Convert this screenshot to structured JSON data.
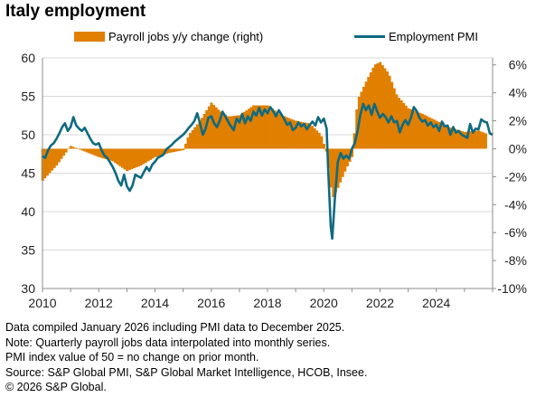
{
  "title": "Italy employment",
  "colors": {
    "bars": "#e07f00",
    "line": "#0e6a80",
    "axis": "#8c8c8c",
    "grid": "#d9d9d9"
  },
  "footnotes": [
    "Data compiled January 2026 including PMI data to December 2025.",
    "Note: Quarterly payroll jobs data interpolated into monthly series.",
    "PMI index value of 50 = no change on prior month.",
    "Source: S&P Global PMI, S&P Global Market Intelligence, HCOB, Insee.",
    "© 2026 S&P Global."
  ],
  "chart_data": {
    "type": "line+bar",
    "title": "Italy employment",
    "legend": [
      "Payroll jobs y/y change (right)",
      "Employment PMI"
    ],
    "x_range": [
      2010.0,
      2026.0
    ],
    "x_ticks": [
      2010,
      2012,
      2014,
      2016,
      2018,
      2020,
      2022,
      2024
    ],
    "x_tick_labels": [
      "2010",
      "2012",
      "2014",
      "2016",
      "2018",
      "2020",
      "2022",
      "2024"
    ],
    "left_axis": {
      "range": [
        30,
        60
      ],
      "ticks": [
        30,
        35,
        40,
        45,
        50,
        55,
        60
      ],
      "tick_labels": [
        "30",
        "35",
        "40",
        "45",
        "50",
        "55",
        "60"
      ]
    },
    "right_axis": {
      "range": [
        -10,
        6.5
      ],
      "ticks": [
        -10,
        -8,
        -6,
        -4,
        -2,
        0,
        2,
        4,
        6
      ],
      "tick_labels": [
        "-10%",
        "-8%",
        "-6%",
        "-4%",
        "-2%",
        "0%",
        "2%",
        "4%",
        "6%"
      ]
    },
    "series": [
      {
        "name": "Payroll jobs y/y change (right)",
        "type": "bar",
        "axis": "right",
        "unit": "%",
        "points": [
          [
            2010.0,
            -2.3
          ],
          [
            2010.5,
            -1.2
          ],
          [
            2011.0,
            0.2
          ],
          [
            2011.5,
            -0.2
          ],
          [
            2012.0,
            -0.6
          ],
          [
            2012.5,
            -0.9
          ],
          [
            2013.0,
            -1.6
          ],
          [
            2013.5,
            -1.2
          ],
          [
            2014.0,
            -0.6
          ],
          [
            2014.5,
            -0.3
          ],
          [
            2015.0,
            -0.1
          ],
          [
            2015.2,
            1.0
          ],
          [
            2015.6,
            2.0
          ],
          [
            2016.0,
            3.3
          ],
          [
            2016.3,
            2.7
          ],
          [
            2016.6,
            2.3
          ],
          [
            2017.0,
            2.4
          ],
          [
            2017.5,
            3.1
          ],
          [
            2018.0,
            3.1
          ],
          [
            2018.5,
            2.4
          ],
          [
            2019.0,
            2.0
          ],
          [
            2019.5,
            1.8
          ],
          [
            2019.9,
            1.0
          ],
          [
            2020.1,
            -0.3
          ],
          [
            2020.3,
            -3.6
          ],
          [
            2020.5,
            -2.8
          ],
          [
            2020.8,
            -1.4
          ],
          [
            2021.0,
            -0.6
          ],
          [
            2021.2,
            3.5
          ],
          [
            2021.5,
            4.8
          ],
          [
            2021.8,
            6.0
          ],
          [
            2022.0,
            6.2
          ],
          [
            2022.3,
            5.4
          ],
          [
            2022.6,
            3.8
          ],
          [
            2023.0,
            2.9
          ],
          [
            2023.5,
            2.5
          ],
          [
            2024.0,
            2.0
          ],
          [
            2024.5,
            1.5
          ],
          [
            2025.0,
            1.2
          ],
          [
            2025.5,
            1.3
          ],
          [
            2025.75,
            1.1
          ]
        ]
      },
      {
        "name": "Employment PMI",
        "type": "line",
        "axis": "left",
        "unit": "index",
        "points": [
          [
            2010.0,
            47.2
          ],
          [
            2010.1,
            47.0
          ],
          [
            2010.2,
            48.0
          ],
          [
            2010.3,
            48.6
          ],
          [
            2010.4,
            48.9
          ],
          [
            2010.5,
            49.5
          ],
          [
            2010.6,
            50.2
          ],
          [
            2010.7,
            51.0
          ],
          [
            2010.8,
            51.5
          ],
          [
            2010.9,
            50.5
          ],
          [
            2011.0,
            51.0
          ],
          [
            2011.1,
            52.3
          ],
          [
            2011.2,
            51.2
          ],
          [
            2011.3,
            50.8
          ],
          [
            2011.4,
            50.5
          ],
          [
            2011.5,
            50.9
          ],
          [
            2011.6,
            50.2
          ],
          [
            2011.7,
            49.5
          ],
          [
            2011.8,
            48.9
          ],
          [
            2011.9,
            48.7
          ],
          [
            2012.0,
            48.9
          ],
          [
            2012.1,
            48.0
          ],
          [
            2012.2,
            47.3
          ],
          [
            2012.3,
            47.0
          ],
          [
            2012.4,
            46.4
          ],
          [
            2012.5,
            45.8
          ],
          [
            2012.6,
            45.0
          ],
          [
            2012.7,
            44.0
          ],
          [
            2012.8,
            43.4
          ],
          [
            2012.9,
            44.8
          ],
          [
            2013.0,
            43.3
          ],
          [
            2013.1,
            42.7
          ],
          [
            2013.2,
            43.4
          ],
          [
            2013.3,
            44.8
          ],
          [
            2013.5,
            44.4
          ],
          [
            2013.6,
            45.1
          ],
          [
            2013.7,
            45.8
          ],
          [
            2013.8,
            45.3
          ],
          [
            2013.9,
            46.1
          ],
          [
            2014.0,
            46.5
          ],
          [
            2014.1,
            47.0
          ],
          [
            2014.2,
            47.2
          ],
          [
            2014.3,
            47.4
          ],
          [
            2014.4,
            48.1
          ],
          [
            2014.5,
            48.4
          ],
          [
            2014.6,
            48.7
          ],
          [
            2014.7,
            49.1
          ],
          [
            2014.8,
            49.4
          ],
          [
            2014.9,
            49.7
          ],
          [
            2015.0,
            50.0
          ],
          [
            2015.1,
            50.4
          ],
          [
            2015.2,
            50.9
          ],
          [
            2015.3,
            51.3
          ],
          [
            2015.4,
            51.8
          ],
          [
            2015.5,
            52.8
          ],
          [
            2015.6,
            51.5
          ],
          [
            2015.7,
            50.0
          ],
          [
            2015.8,
            50.8
          ],
          [
            2015.9,
            52.2
          ],
          [
            2016.0,
            52.4
          ],
          [
            2016.1,
            51.5
          ],
          [
            2016.2,
            51.0
          ],
          [
            2016.3,
            51.8
          ],
          [
            2016.4,
            53.0
          ],
          [
            2016.5,
            52.4
          ],
          [
            2016.6,
            51.7
          ],
          [
            2016.7,
            51.1
          ],
          [
            2016.8,
            50.6
          ],
          [
            2016.9,
            52.1
          ],
          [
            2017.0,
            51.6
          ],
          [
            2017.1,
            52.7
          ],
          [
            2017.2,
            51.5
          ],
          [
            2017.3,
            52.4
          ],
          [
            2017.4,
            51.8
          ],
          [
            2017.5,
            53.0
          ],
          [
            2017.6,
            52.5
          ],
          [
            2017.7,
            53.5
          ],
          [
            2017.8,
            52.5
          ],
          [
            2017.9,
            53.3
          ],
          [
            2018.0,
            52.8
          ],
          [
            2018.1,
            53.6
          ],
          [
            2018.2,
            53.1
          ],
          [
            2018.3,
            52.4
          ],
          [
            2018.4,
            53.2
          ],
          [
            2018.5,
            52.6
          ],
          [
            2018.6,
            52.0
          ],
          [
            2018.7,
            51.3
          ],
          [
            2018.8,
            51.6
          ],
          [
            2018.9,
            50.6
          ],
          [
            2019.0,
            50.9
          ],
          [
            2019.1,
            51.6
          ],
          [
            2019.2,
            51.1
          ],
          [
            2019.3,
            51.4
          ],
          [
            2019.4,
            50.7
          ],
          [
            2019.5,
            51.3
          ],
          [
            2019.6,
            51.7
          ],
          [
            2019.7,
            51.2
          ],
          [
            2019.8,
            52.3
          ],
          [
            2019.9,
            51.6
          ],
          [
            2020.0,
            52.1
          ],
          [
            2020.1,
            50.8
          ],
          [
            2020.15,
            46.0
          ],
          [
            2020.25,
            38.0
          ],
          [
            2020.3,
            36.5
          ],
          [
            2020.4,
            42.0
          ],
          [
            2020.5,
            46.5
          ],
          [
            2020.6,
            47.6
          ],
          [
            2020.7,
            46.9
          ],
          [
            2020.8,
            47.3
          ],
          [
            2020.9,
            46.9
          ],
          [
            2021.0,
            48.2
          ],
          [
            2021.1,
            48.9
          ],
          [
            2021.2,
            50.5
          ],
          [
            2021.3,
            52.6
          ],
          [
            2021.4,
            54.0
          ],
          [
            2021.5,
            53.2
          ],
          [
            2021.6,
            53.8
          ],
          [
            2021.7,
            52.6
          ],
          [
            2021.8,
            54.0
          ],
          [
            2021.9,
            53.0
          ],
          [
            2022.0,
            52.2
          ],
          [
            2022.1,
            52.7
          ],
          [
            2022.2,
            52.3
          ],
          [
            2022.3,
            51.6
          ],
          [
            2022.4,
            52.4
          ],
          [
            2022.5,
            51.6
          ],
          [
            2022.6,
            51.8
          ],
          [
            2022.7,
            50.3
          ],
          [
            2022.8,
            51.3
          ],
          [
            2022.9,
            51.9
          ],
          [
            2023.0,
            51.3
          ],
          [
            2023.1,
            52.2
          ],
          [
            2023.2,
            53.6
          ],
          [
            2023.3,
            53.1
          ],
          [
            2023.4,
            52.2
          ],
          [
            2023.5,
            51.7
          ],
          [
            2023.6,
            51.9
          ],
          [
            2023.7,
            51.2
          ],
          [
            2023.8,
            51.6
          ],
          [
            2023.9,
            51.0
          ],
          [
            2024.0,
            51.3
          ],
          [
            2024.1,
            50.5
          ],
          [
            2024.2,
            51.7
          ],
          [
            2024.3,
            51.1
          ],
          [
            2024.4,
            51.2
          ],
          [
            2024.5,
            50.0
          ],
          [
            2024.6,
            51.0
          ],
          [
            2024.7,
            50.3
          ],
          [
            2024.8,
            50.5
          ],
          [
            2024.9,
            50.0
          ],
          [
            2025.0,
            49.8
          ],
          [
            2025.1,
            49.6
          ],
          [
            2025.2,
            51.4
          ],
          [
            2025.3,
            50.3
          ],
          [
            2025.4,
            50.8
          ],
          [
            2025.5,
            50.7
          ],
          [
            2025.6,
            52.0
          ],
          [
            2025.7,
            51.7
          ],
          [
            2025.8,
            51.6
          ],
          [
            2025.9,
            50.2
          ],
          [
            2026.0,
            50.0
          ]
        ]
      }
    ]
  }
}
